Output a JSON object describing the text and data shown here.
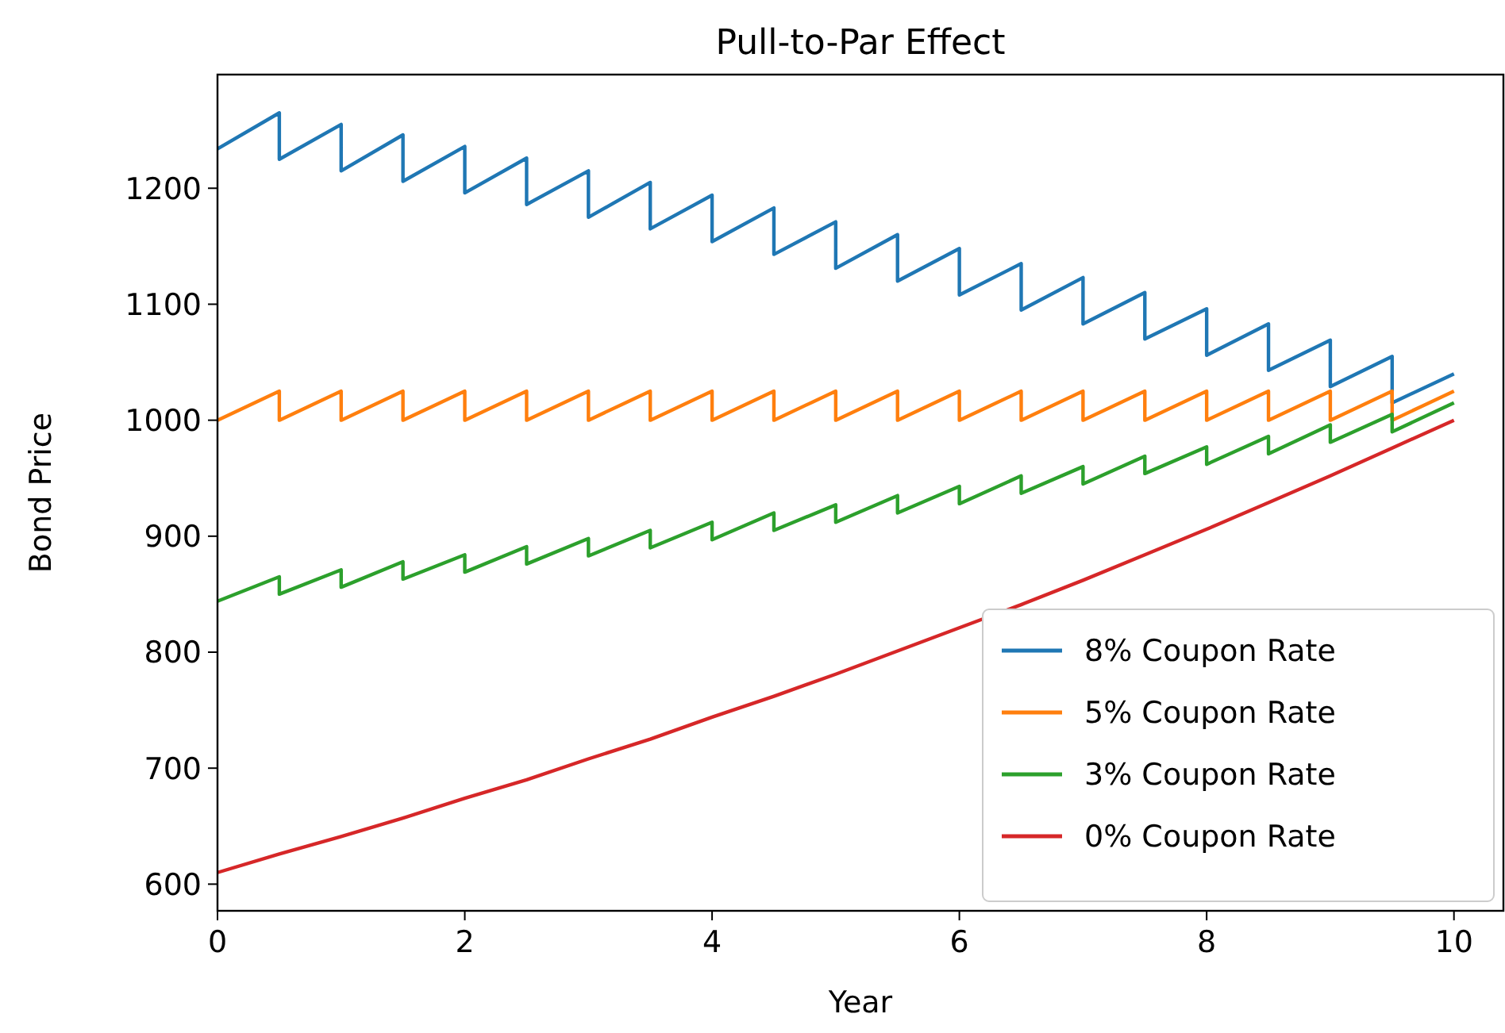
{
  "chart_data": {
    "type": "line",
    "title": "Pull-to-Par Effect",
    "xlabel": "Year",
    "ylabel": "Bond Price",
    "xlim": [
      0,
      10.4
    ],
    "xticks": [
      0,
      2,
      4,
      6,
      8,
      10
    ],
    "ylim": [
      577,
      1298
    ],
    "yticks": [
      600,
      700,
      800,
      900,
      1000,
      1100,
      1200
    ],
    "grid": false,
    "legend": "bottom right",
    "line_style": "solid",
    "marker": "none",
    "series": [
      {
        "name": "8% Coupon Rate",
        "color": "#1f77b4",
        "x": [
          0,
          0.5,
          0.5,
          1,
          1,
          1.5,
          1.5,
          2,
          2,
          2.5,
          2.5,
          3,
          3,
          3.5,
          3.5,
          4,
          4,
          4.5,
          4.5,
          5,
          5,
          5.5,
          5.5,
          6,
          6,
          6.5,
          6.5,
          7,
          7,
          7.5,
          7.5,
          8,
          8,
          8.5,
          8.5,
          9,
          9,
          9.5,
          9.5,
          10
        ],
        "values": [
          1234,
          1265,
          1225,
          1255,
          1215,
          1246,
          1206,
          1236,
          1196,
          1226,
          1186,
          1215,
          1175,
          1205,
          1165,
          1194,
          1154,
          1183,
          1143,
          1171,
          1131,
          1160,
          1120,
          1148,
          1108,
          1135,
          1095,
          1123,
          1083,
          1110,
          1070,
          1096,
          1056,
          1083,
          1043,
          1069,
          1029,
          1055,
          1015,
          1040
        ]
      },
      {
        "name": "5% Coupon Rate",
        "color": "#ff7f0e",
        "x": [
          0,
          0.5,
          0.5,
          1,
          1,
          1.5,
          1.5,
          2,
          2,
          2.5,
          2.5,
          3,
          3,
          3.5,
          3.5,
          4,
          4,
          4.5,
          4.5,
          5,
          5,
          5.5,
          5.5,
          6,
          6,
          6.5,
          6.5,
          7,
          7,
          7.5,
          7.5,
          8,
          8,
          8.5,
          8.5,
          9,
          9,
          9.5,
          9.5,
          10
        ],
        "values": [
          1000,
          1025,
          1000,
          1025,
          1000,
          1025,
          1000,
          1025,
          1000,
          1025,
          1000,
          1025,
          1000,
          1025,
          1000,
          1025,
          1000,
          1025,
          1000,
          1025,
          1000,
          1025,
          1000,
          1025,
          1000,
          1025,
          1000,
          1025,
          1000,
          1025,
          1000,
          1025,
          1000,
          1025,
          1000,
          1025,
          1000,
          1025,
          1000,
          1025
        ]
      },
      {
        "name": "3% Coupon Rate",
        "color": "#2ca02c",
        "x": [
          0,
          0.5,
          0.5,
          1,
          1,
          1.5,
          1.5,
          2,
          2,
          2.5,
          2.5,
          3,
          3,
          3.5,
          3.5,
          4,
          4,
          4.5,
          4.5,
          5,
          5,
          5.5,
          5.5,
          6,
          6,
          6.5,
          6.5,
          7,
          7,
          7.5,
          7.5,
          8,
          8,
          8.5,
          8.5,
          9,
          9,
          9.5,
          9.5,
          10
        ],
        "values": [
          844,
          865,
          850,
          871,
          856,
          878,
          863,
          884,
          869,
          891,
          876,
          898,
          883,
          905,
          890,
          912,
          897,
          920,
          905,
          927,
          912,
          935,
          920,
          943,
          928,
          952,
          937,
          960,
          945,
          969,
          954,
          977,
          962,
          986,
          971,
          996,
          981,
          1005,
          990,
          1015
        ]
      },
      {
        "name": "0% Coupon Rate",
        "color": "#d62728",
        "x": [
          0,
          0.5,
          1,
          1.5,
          2,
          2.5,
          3,
          3.5,
          4,
          4.5,
          5,
          5.5,
          6,
          6.5,
          7,
          7.5,
          8,
          8.5,
          9,
          9.5,
          10
        ],
        "values": [
          610,
          626,
          641,
          657,
          674,
          690,
          708,
          725,
          744,
          762,
          781,
          801,
          821,
          841,
          862,
          884,
          906,
          929,
          952,
          976,
          1000
        ]
      }
    ]
  }
}
